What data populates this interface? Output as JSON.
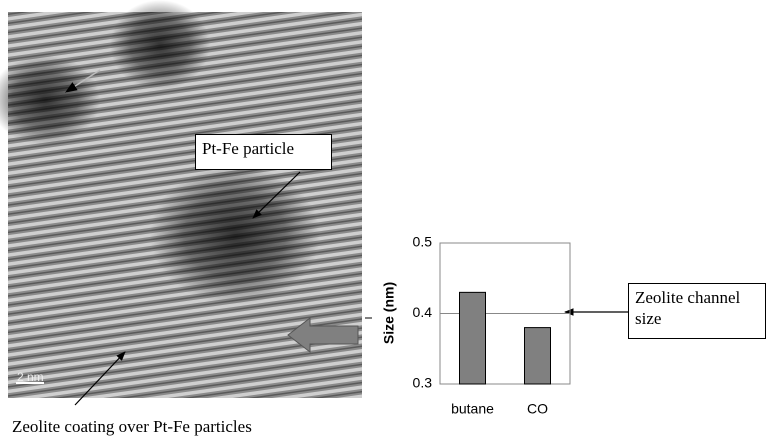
{
  "image": {
    "particle_label": "Pt-Fe particle",
    "coating_label": "Zeolite coating over Pt-Fe particles",
    "scale_bar": "2 nm"
  },
  "chart_data": {
    "type": "bar",
    "ylabel": "Size (nm)",
    "annotation": "Zeolite channel size",
    "categories": [
      "butane",
      "CO"
    ],
    "values": [
      0.43,
      0.38
    ],
    "color": "#808080",
    "ylim": [
      0.3,
      0.5
    ],
    "yticks": [
      0.3,
      0.4,
      0.5
    ],
    "grid": true
  }
}
